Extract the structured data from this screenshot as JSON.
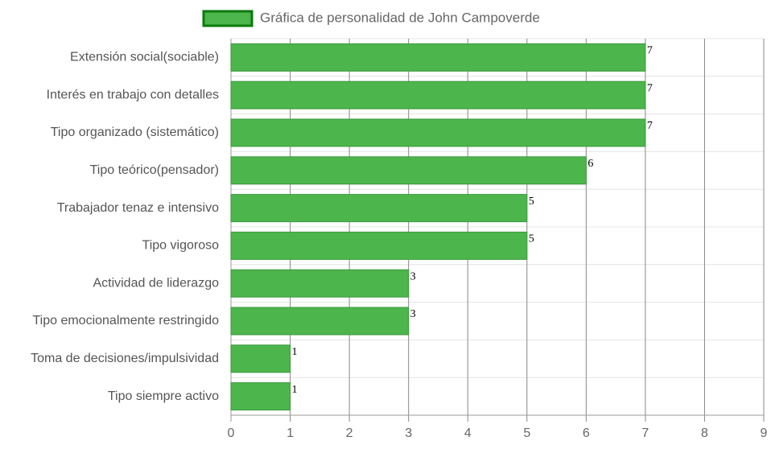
{
  "chart_data": {
    "type": "bar",
    "orientation": "horizontal",
    "categories": [
      "Extensión social(sociable)",
      "Interés en trabajo con detalles",
      "Tipo organizado (sistemático)",
      "Tipo teórico(pensador)",
      "Trabajador tenaz e intensivo",
      "Tipo vigoroso",
      "Actividad de liderazgo",
      "Tipo emocionalmente restringido",
      "Toma de decisiones/impulsividad",
      "Tipo siempre activo"
    ],
    "series": [
      {
        "name": "Gráfica de personalidad de John Campoverde",
        "color": "#4cb54c",
        "border_color": "#0a7a0a",
        "values": [
          7,
          7,
          7,
          6,
          5,
          5,
          3,
          3,
          1,
          1
        ]
      }
    ],
    "xlim": [
      0,
      9
    ],
    "xticks": [
      0,
      1,
      2,
      3,
      4,
      5,
      6,
      7,
      8,
      9
    ],
    "grid": true,
    "legend": "top"
  }
}
